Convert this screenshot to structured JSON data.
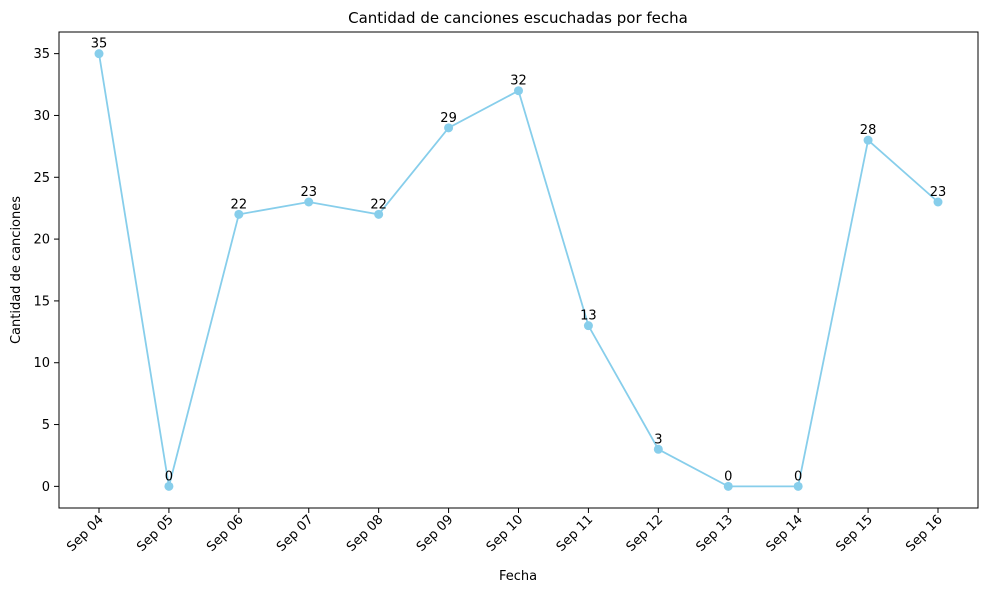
{
  "chart_data": {
    "type": "line",
    "title": "Cantidad de canciones escuchadas por fecha",
    "xlabel": "Fecha",
    "ylabel": "Cantidad de canciones",
    "categories": [
      "Sep 04",
      "Sep 05",
      "Sep 06",
      "Sep 07",
      "Sep 08",
      "Sep 09",
      "Sep 10",
      "Sep 11",
      "Sep 12",
      "Sep 13",
      "Sep 14",
      "Sep 15",
      "Sep 16"
    ],
    "values": [
      35,
      0,
      22,
      23,
      22,
      29,
      32,
      13,
      3,
      0,
      0,
      28,
      23
    ],
    "ylim": [
      -1.75,
      36.75
    ],
    "yticks": [
      0,
      5,
      10,
      15,
      20,
      25,
      30,
      35
    ],
    "grid": false,
    "legend": "none",
    "marker": "circle",
    "data_labels": true,
    "colors": {
      "line": "#87ceeb",
      "axis": "#000000",
      "background": "#ffffff"
    }
  }
}
